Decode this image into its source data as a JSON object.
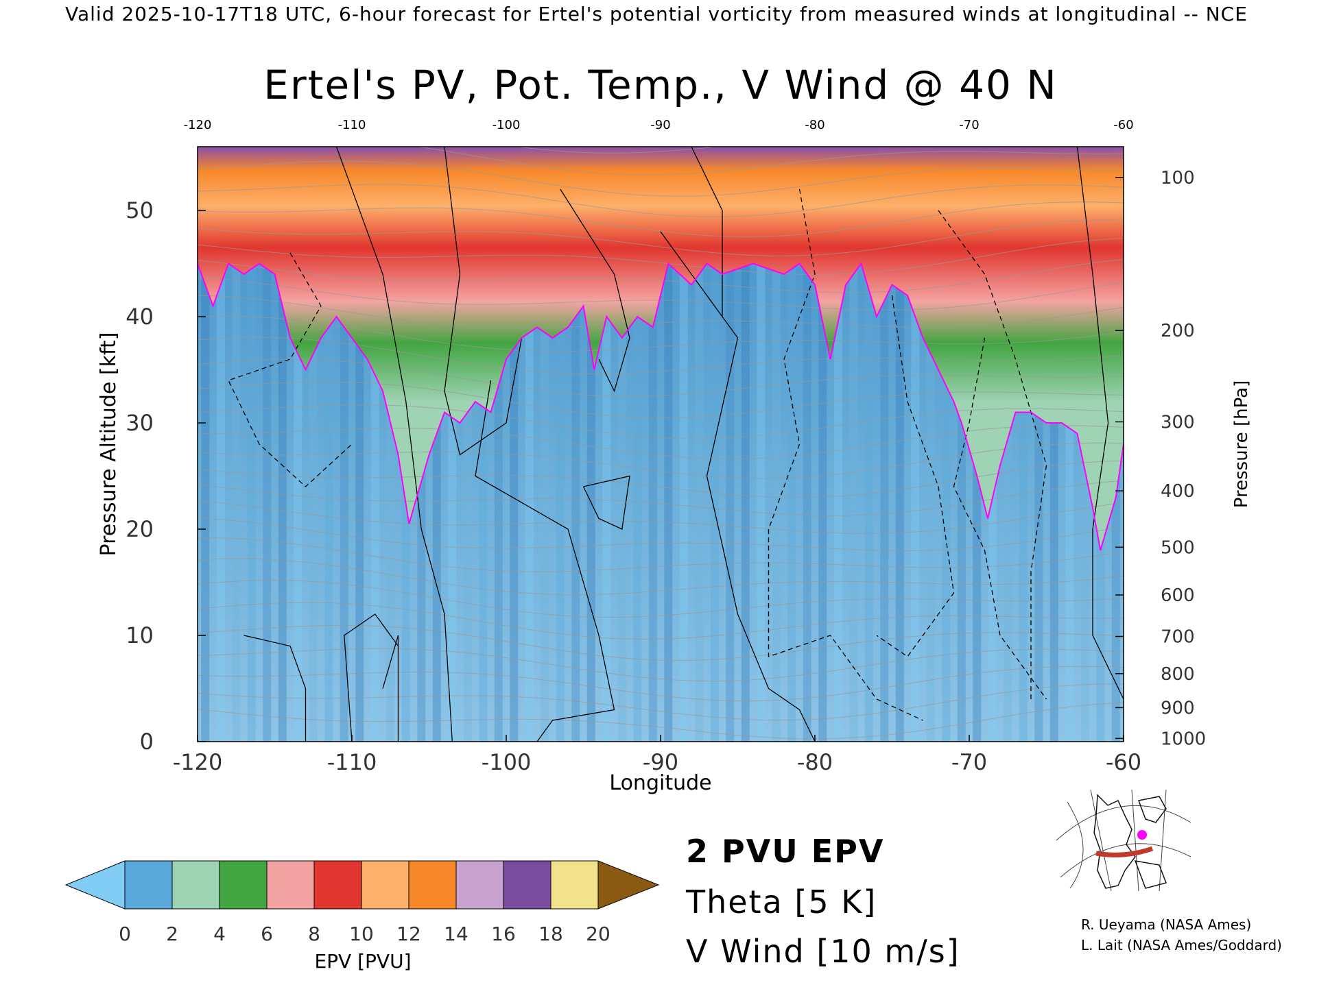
{
  "header": {
    "valid_line": "Valid 2025-10-17T18 UTC, 6-hour forecast for Ertel's potential vorticity from measured winds at longitudinal -- NCE"
  },
  "chart_data": {
    "type": "heatmap",
    "title": "Ertel's PV, Pot. Temp., V Wind @ 40 N",
    "xlabel": "Longitude",
    "ylabel": "Pressure Altitude [kft]",
    "y2label": "Pressure [hPa]",
    "xlim": [
      -120,
      -60
    ],
    "ylim": [
      0,
      56
    ],
    "x_ticks": [
      "-120",
      "-110",
      "-100",
      "-90",
      "-80",
      "-70",
      "-60"
    ],
    "x_ticks_top": [
      "-120",
      "-110",
      "-100",
      "-90",
      "-80",
      "-70",
      "-60"
    ],
    "y_ticks": [
      "0",
      "10",
      "20",
      "30",
      "40",
      "50"
    ],
    "pressure_ticks": [
      {
        "label": "100",
        "kft": 53.1
      },
      {
        "label": "200",
        "kft": 38.7
      },
      {
        "label": "300",
        "kft": 30.1
      },
      {
        "label": "400",
        "kft": 23.6
      },
      {
        "label": "500",
        "kft": 18.3
      },
      {
        "label": "600",
        "kft": 13.8
      },
      {
        "label": "700",
        "kft": 9.9
      },
      {
        "label": "800",
        "kft": 6.4
      },
      {
        "label": "900",
        "kft": 3.2
      },
      {
        "label": "1000",
        "kft": 0.3
      }
    ],
    "tropopause_2pvu_kft": [
      [
        -120,
        45
      ],
      [
        -119,
        41
      ],
      [
        -118,
        45
      ],
      [
        -117,
        44
      ],
      [
        -116,
        45
      ],
      [
        -115,
        44
      ],
      [
        -114,
        38
      ],
      [
        -113,
        35
      ],
      [
        -112,
        38
      ],
      [
        -111,
        40
      ],
      [
        -110,
        38
      ],
      [
        -109,
        36
      ],
      [
        -108,
        33
      ],
      [
        -107,
        27
      ],
      [
        -106.3,
        20.5
      ],
      [
        -105,
        27
      ],
      [
        -104,
        31
      ],
      [
        -103,
        30
      ],
      [
        -102,
        32
      ],
      [
        -101,
        31
      ],
      [
        -100,
        36
      ],
      [
        -99,
        38
      ],
      [
        -98,
        39
      ],
      [
        -97,
        38
      ],
      [
        -96,
        39
      ],
      [
        -95,
        41
      ],
      [
        -94.3,
        35
      ],
      [
        -93.5,
        40
      ],
      [
        -92.5,
        38
      ],
      [
        -91.5,
        40
      ],
      [
        -90.5,
        39
      ],
      [
        -89.5,
        45
      ],
      [
        -88,
        43
      ],
      [
        -87,
        45
      ],
      [
        -86,
        44
      ],
      [
        -84,
        45
      ],
      [
        -82,
        44
      ],
      [
        -81,
        45
      ],
      [
        -80,
        43
      ],
      [
        -79,
        36
      ],
      [
        -78,
        43
      ],
      [
        -77,
        45
      ],
      [
        -76,
        40
      ],
      [
        -75,
        43
      ],
      [
        -74,
        42
      ],
      [
        -73,
        38
      ],
      [
        -72,
        35
      ],
      [
        -71,
        32
      ],
      [
        -70.5,
        30
      ],
      [
        -69.5,
        25
      ],
      [
        -68.8,
        21
      ],
      [
        -68,
        26
      ],
      [
        -67,
        31
      ],
      [
        -66,
        31
      ],
      [
        -65,
        30
      ],
      [
        -64,
        30
      ],
      [
        -63,
        29
      ],
      [
        -62,
        22
      ],
      [
        -61.5,
        18
      ],
      [
        -60.5,
        23
      ],
      [
        -60,
        28
      ]
    ],
    "colorbar": {
      "label": "EPV [PVU]",
      "ticks": [
        "0",
        "2",
        "4",
        "6",
        "8",
        "10",
        "12",
        "14",
        "16",
        "18",
        "20"
      ],
      "colors": [
        "#5aa9da",
        "#9ed3b4",
        "#43a541",
        "#f3a3a2",
        "#e1362f",
        "#fdb06a",
        "#f7882a",
        "#c9a3cf",
        "#7a4ca0",
        "#f3e28c"
      ],
      "under_color": "#81cdf6",
      "over_color": "#8a5a12"
    },
    "legend": {
      "pv": "2 PVU EPV",
      "theta": "Theta [5 K]",
      "wind": "V Wind [10 m/s]"
    }
  },
  "credits": {
    "line1": "R. Ueyama (NASA Ames)",
    "line2": "L. Lait (NASA Ames/Goddard)"
  },
  "colors": {
    "pv_contour": "#ff00ff",
    "theta": "#999999",
    "wind": "#000000"
  }
}
